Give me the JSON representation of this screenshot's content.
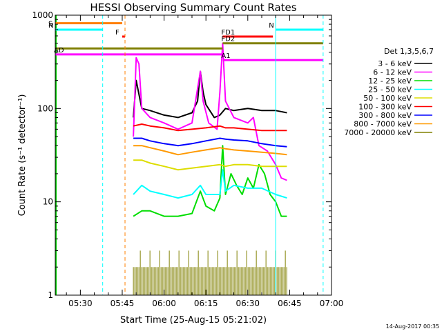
{
  "chart_data": {
    "type": "line",
    "title": "HESSI Observing Summary Count Rates",
    "xlabel": "Start Time (25-Aug-15 05:21:02)",
    "ylabel": "Count Rate (s⁻¹ detector⁻¹)",
    "y_scale": "log",
    "xlim": [
      "05:21",
      "07:00"
    ],
    "ylim": [
      1,
      1000
    ],
    "x_ticks": [
      "05:30",
      "05:45",
      "06:00",
      "06:15",
      "06:30",
      "06:45",
      "07:00"
    ],
    "y_ticks": [
      "1",
      "10",
      "100",
      "1000"
    ],
    "legend_title": "Det 1,3,5,6,7",
    "legend_placement": "right",
    "footer_timestamp": "14-Aug-2017 00:35",
    "series": [
      {
        "name": "3 - 6 keV",
        "color": "#000000",
        "points": [
          [
            "05:49",
            80
          ],
          [
            "05:50",
            200
          ],
          [
            "05:52",
            100
          ],
          [
            "05:55",
            95
          ],
          [
            "06:00",
            85
          ],
          [
            "06:05",
            80
          ],
          [
            "06:10",
            90
          ],
          [
            "06:12",
            120
          ],
          [
            "06:13",
            250
          ],
          [
            "06:14",
            150
          ],
          [
            "06:15",
            110
          ],
          [
            "06:18",
            80
          ],
          [
            "06:20",
            85
          ],
          [
            "06:22",
            100
          ],
          [
            "06:25",
            95
          ],
          [
            "06:30",
            100
          ],
          [
            "06:35",
            95
          ],
          [
            "06:40",
            95
          ],
          [
            "06:44",
            90
          ]
        ]
      },
      {
        "name": "6 - 12 keV",
        "color": "#ff00ff",
        "points": [
          [
            "05:49",
            50
          ],
          [
            "05:50",
            350
          ],
          [
            "05:51",
            300
          ],
          [
            "05:52",
            100
          ],
          [
            "05:55",
            80
          ],
          [
            "06:00",
            70
          ],
          [
            "06:05",
            60
          ],
          [
            "06:10",
            70
          ],
          [
            "06:13",
            250
          ],
          [
            "06:14",
            120
          ],
          [
            "06:16",
            70
          ],
          [
            "06:19",
            60
          ],
          [
            "06:20",
            150
          ],
          [
            "06:21",
            500
          ],
          [
            "06:22",
            120
          ],
          [
            "06:25",
            80
          ],
          [
            "06:30",
            70
          ],
          [
            "06:32",
            80
          ],
          [
            "06:34",
            40
          ],
          [
            "06:37",
            35
          ],
          [
            "06:40",
            25
          ],
          [
            "06:42",
            18
          ],
          [
            "06:44",
            17
          ]
        ]
      },
      {
        "name": "12 - 25 keV",
        "color": "#00dd00",
        "points": [
          [
            "05:49",
            7
          ],
          [
            "05:52",
            8
          ],
          [
            "05:55",
            8
          ],
          [
            "06:00",
            7
          ],
          [
            "06:05",
            7
          ],
          [
            "06:10",
            7.5
          ],
          [
            "06:13",
            13
          ],
          [
            "06:15",
            9
          ],
          [
            "06:18",
            8
          ],
          [
            "06:20",
            11
          ],
          [
            "06:21",
            40
          ],
          [
            "06:22",
            12
          ],
          [
            "06:24",
            20
          ],
          [
            "06:26",
            15
          ],
          [
            "06:28",
            12
          ],
          [
            "06:30",
            18
          ],
          [
            "06:32",
            14
          ],
          [
            "06:34",
            25
          ],
          [
            "06:36",
            20
          ],
          [
            "06:38",
            12
          ],
          [
            "06:40",
            10
          ],
          [
            "06:42",
            7
          ],
          [
            "06:44",
            7
          ]
        ]
      },
      {
        "name": "25 - 50 keV",
        "color": "#00ffff",
        "points": [
          [
            "05:49",
            12
          ],
          [
            "05:52",
            15
          ],
          [
            "05:55",
            13
          ],
          [
            "06:00",
            12
          ],
          [
            "06:05",
            11
          ],
          [
            "06:10",
            12
          ],
          [
            "06:13",
            15
          ],
          [
            "06:15",
            12
          ],
          [
            "06:20",
            12
          ],
          [
            "06:21",
            22
          ],
          [
            "06:22",
            13
          ],
          [
            "06:25",
            15
          ],
          [
            "06:30",
            14
          ],
          [
            "06:35",
            14
          ],
          [
            "06:40",
            12
          ],
          [
            "06:44",
            11
          ]
        ]
      },
      {
        "name": "50 - 100 keV",
        "color": "#dddd00",
        "points": [
          [
            "05:49",
            28
          ],
          [
            "05:52",
            28
          ],
          [
            "05:55",
            26
          ],
          [
            "06:00",
            24
          ],
          [
            "06:05",
            22
          ],
          [
            "06:10",
            23
          ],
          [
            "06:15",
            24
          ],
          [
            "06:20",
            25
          ],
          [
            "06:22",
            24
          ],
          [
            "06:25",
            25
          ],
          [
            "06:30",
            25
          ],
          [
            "06:35",
            24
          ],
          [
            "06:40",
            24
          ],
          [
            "06:44",
            24
          ]
        ]
      },
      {
        "name": "100 - 300 keV",
        "color": "#ff0000",
        "points": [
          [
            "05:49",
            65
          ],
          [
            "05:52",
            68
          ],
          [
            "05:55",
            65
          ],
          [
            "06:00",
            62
          ],
          [
            "06:05",
            58
          ],
          [
            "06:10",
            60
          ],
          [
            "06:15",
            62
          ],
          [
            "06:20",
            65
          ],
          [
            "06:22",
            62
          ],
          [
            "06:25",
            62
          ],
          [
            "06:30",
            60
          ],
          [
            "06:35",
            58
          ],
          [
            "06:40",
            58
          ],
          [
            "06:44",
            58
          ]
        ]
      },
      {
        "name": "300 - 800 keV",
        "color": "#0000ff",
        "points": [
          [
            "05:49",
            48
          ],
          [
            "05:52",
            48
          ],
          [
            "05:55",
            45
          ],
          [
            "06:00",
            42
          ],
          [
            "06:05",
            40
          ],
          [
            "06:10",
            42
          ],
          [
            "06:15",
            45
          ],
          [
            "06:20",
            48
          ],
          [
            "06:22",
            47
          ],
          [
            "06:25",
            46
          ],
          [
            "06:30",
            45
          ],
          [
            "06:35",
            42
          ],
          [
            "06:40",
            40
          ],
          [
            "06:44",
            39
          ]
        ]
      },
      {
        "name": "800 - 7000 keV",
        "color": "#ff9900",
        "points": [
          [
            "05:49",
            40
          ],
          [
            "05:52",
            40
          ],
          [
            "05:55",
            38
          ],
          [
            "06:00",
            35
          ],
          [
            "06:05",
            32
          ],
          [
            "06:10",
            34
          ],
          [
            "06:15",
            36
          ],
          [
            "06:20",
            38
          ],
          [
            "06:22",
            37
          ],
          [
            "06:25",
            36
          ],
          [
            "06:30",
            35
          ],
          [
            "06:35",
            34
          ],
          [
            "06:40",
            33
          ],
          [
            "06:44",
            32
          ]
        ]
      },
      {
        "name": "7000 - 20000 keV",
        "color": "#808000",
        "points": [
          [
            "05:49",
            2
          ],
          [
            "06:44",
            2
          ]
        ]
      }
    ],
    "state_bars": [
      {
        "label": "S",
        "color": "#ff7f00",
        "y": 820,
        "x_start": "05:21",
        "x_end": "05:45"
      },
      {
        "label": "N",
        "color": "#00ffff",
        "y": 700,
        "x_start": "05:21",
        "x_end": "05:38"
      },
      {
        "label": "N",
        "color": "#00ffff",
        "y": 700,
        "x_start": "06:40",
        "x_end": "06:57"
      },
      {
        "label": "F",
        "color": "#ff0000",
        "y": 590,
        "x_start": "05:45",
        "x_end": "05:46"
      },
      {
        "label": "FD1",
        "color": "#ff0000",
        "y": 590,
        "x_start": "06:21",
        "x_end": "06:39"
      },
      {
        "label": "FD2",
        "color": "#808000",
        "y": 500,
        "x_start": "06:21",
        "x_end": "06:57"
      },
      {
        "label": "",
        "color": "#808000",
        "y": 440,
        "x_start": "05:21",
        "x_end": "06:21"
      },
      {
        "label": "AD",
        "color": "#ff00ff",
        "y": 380,
        "x_start": "05:21",
        "x_end": "06:21"
      },
      {
        "label": "A1",
        "color": "#ff00ff",
        "y": 330,
        "x_start": "06:21",
        "x_end": "06:57"
      }
    ],
    "vertical_markers": [
      {
        "time": "05:38",
        "color": "#00ffff",
        "style": "dashed"
      },
      {
        "time": "05:46",
        "color": "#ff7f00",
        "style": "dashed"
      },
      {
        "time": "06:40",
        "color": "#00ffff",
        "style": "solid"
      },
      {
        "time": "06:57",
        "color": "#00ffff",
        "style": "dashed"
      }
    ]
  }
}
